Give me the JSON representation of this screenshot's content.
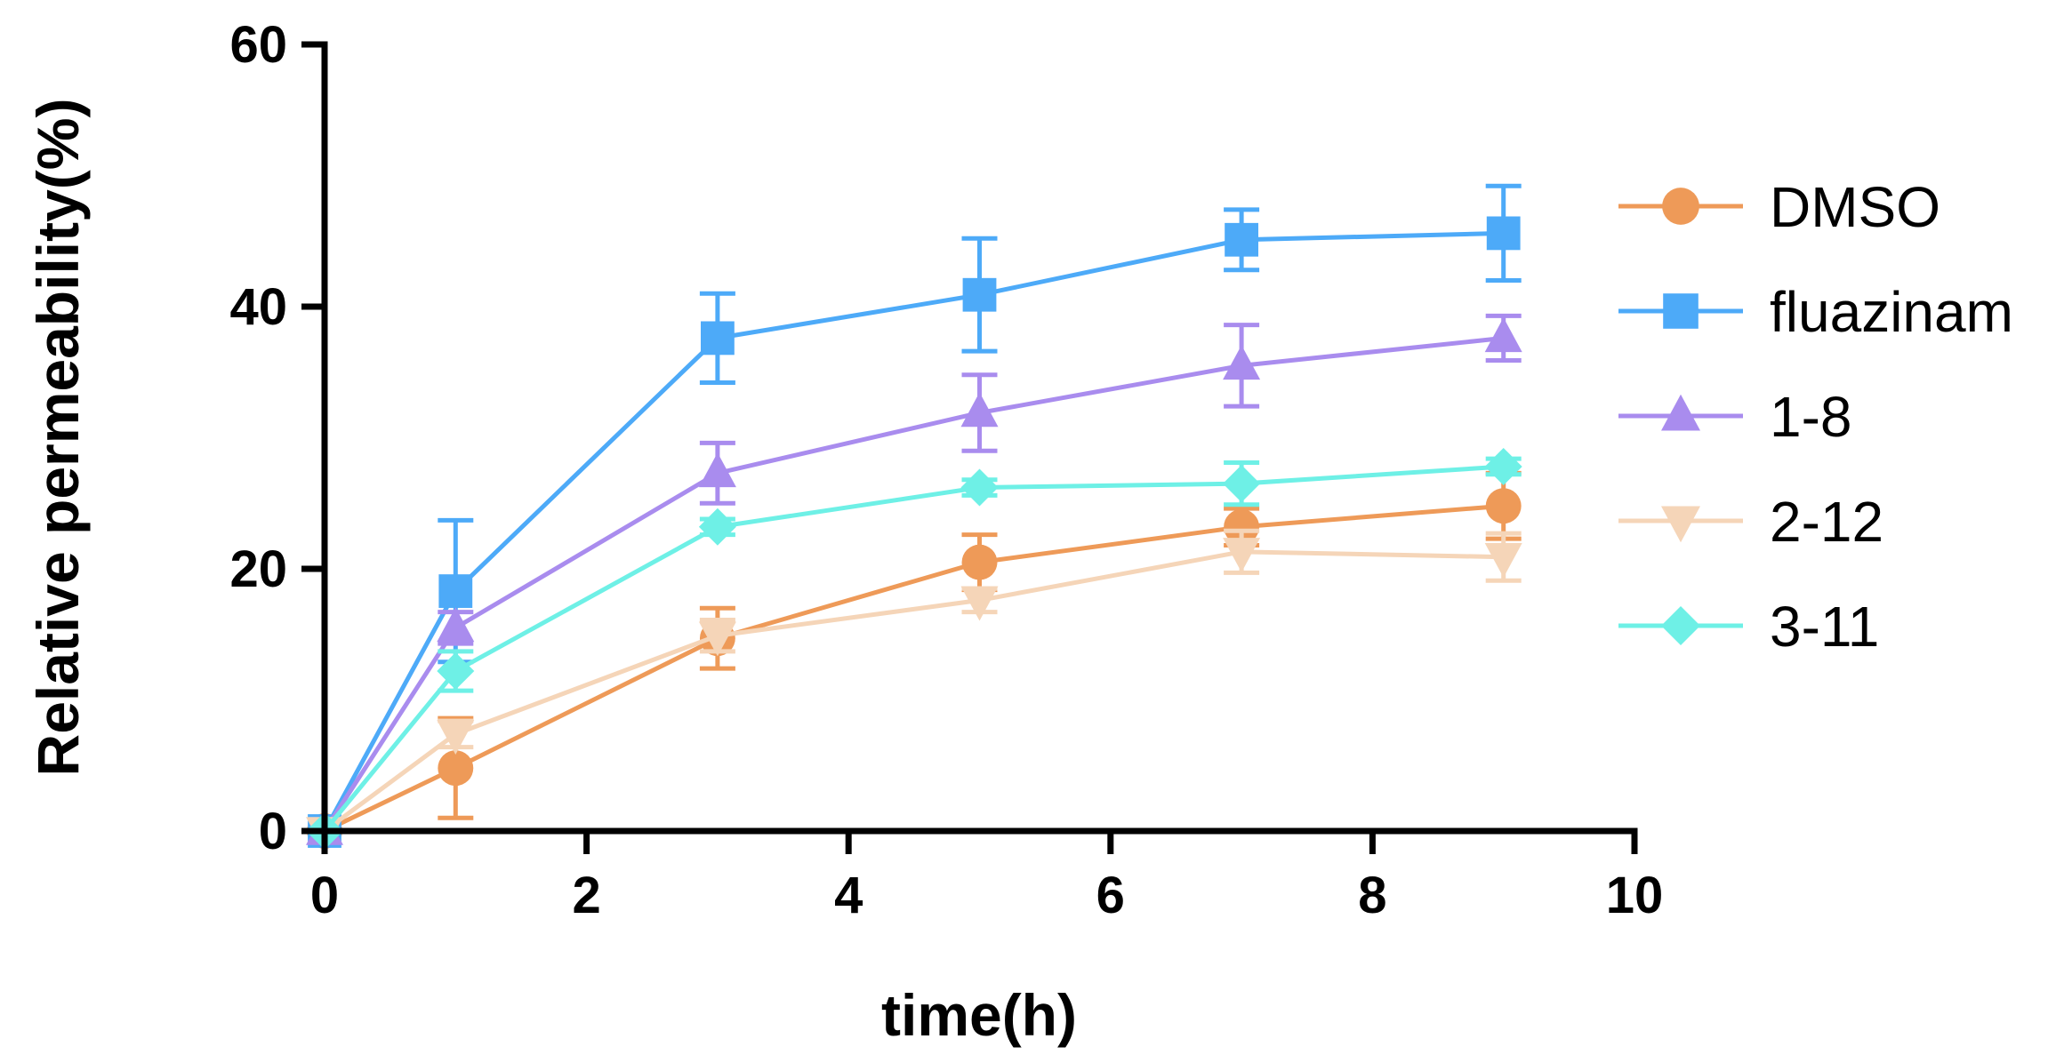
{
  "chart_data": {
    "type": "line",
    "xlabel": "time(h)",
    "ylabel": "Relative permeability(%)",
    "xlim": [
      0,
      10
    ],
    "ylim": [
      0,
      60
    ],
    "x_ticks": [
      "0",
      "2",
      "4",
      "6",
      "8",
      "10"
    ],
    "y_ticks": [
      "0",
      "20",
      "40",
      "60"
    ],
    "legend_position": "right",
    "x": [
      0,
      1,
      3,
      5,
      7,
      9
    ],
    "series": [
      {
        "name": "DMSO",
        "marker": "circle",
        "color": "#EE9A58",
        "values": [
          0,
          4.8,
          14.7,
          20.5,
          23.2,
          24.8
        ],
        "errors": [
          0,
          3.8,
          2.3,
          2.1,
          1.4,
          2.5
        ]
      },
      {
        "name": "fluazinam",
        "marker": "square",
        "color": "#4DAAF8",
        "values": [
          0,
          18.3,
          37.6,
          40.9,
          45.1,
          45.6
        ],
        "errors": [
          0,
          5.4,
          3.4,
          4.3,
          2.3,
          3.6
        ]
      },
      {
        "name": "1-8",
        "marker": "triangle-up",
        "color": "#A98CEE",
        "values": [
          0,
          15.5,
          27.3,
          31.9,
          35.5,
          37.6
        ],
        "errors": [
          0,
          1.2,
          2.3,
          2.9,
          3.1,
          1.7
        ]
      },
      {
        "name": "2-12",
        "marker": "triangle-down",
        "color": "#F5D5B8",
        "values": [
          0,
          7.4,
          14.9,
          17.6,
          21.3,
          20.9
        ],
        "errors": [
          0,
          1.0,
          1.2,
          0.9,
          1.6,
          1.8
        ]
      },
      {
        "name": "3-11",
        "marker": "diamond",
        "color": "#6EF0E6",
        "values": [
          0,
          12.2,
          23.2,
          26.2,
          26.5,
          27.8
        ],
        "errors": [
          0,
          1.5,
          0.6,
          0.6,
          1.6,
          0.6
        ]
      }
    ]
  }
}
